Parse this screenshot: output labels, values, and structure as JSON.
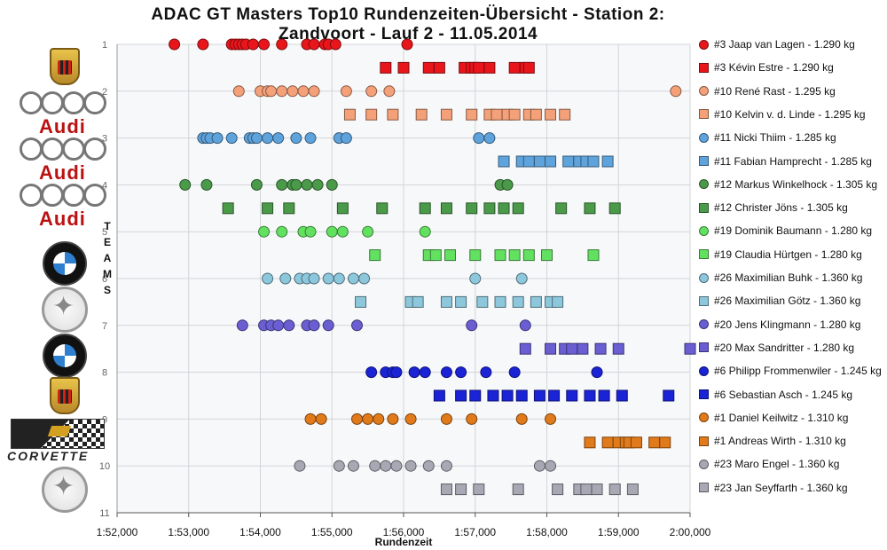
{
  "chart_data": {
    "type": "scatter",
    "title": "ADAC GT Masters Top10 Rundenzeiten-Übersicht - Station 2:\nZandvoort - Lauf 2 - 11.05.2014",
    "xlabel": "Rundenzeit",
    "ylabel": "",
    "xlim": [
      112,
      120
    ],
    "ylim": [
      1,
      11
    ],
    "x_ticks": [
      {
        "value": 112,
        "label": "1:52,000"
      },
      {
        "value": 113,
        "label": "1:53,000"
      },
      {
        "value": 114,
        "label": "1:54,000"
      },
      {
        "value": 115,
        "label": "1:55,000"
      },
      {
        "value": 116,
        "label": "1:56,000"
      },
      {
        "value": 117,
        "label": "1:57,000"
      },
      {
        "value": 118,
        "label": "1:58,000"
      },
      {
        "value": 119,
        "label": "1:59,000"
      },
      {
        "value": 120,
        "label": "2:00,000"
      }
    ],
    "y_ticks": [
      "1",
      "2",
      "3",
      "4",
      "5",
      "6",
      "7",
      "8",
      "9",
      "10",
      "11"
    ],
    "grid": true,
    "legend_position": "right",
    "side_text": "TEAMS",
    "series": [
      {
        "name": "#3 Jaap van Lagen - 1.290 kg",
        "color": "#e8151b",
        "marker": "circle",
        "row": 1,
        "x": [
          112.8,
          113.2,
          113.6,
          113.65,
          113.7,
          113.75,
          113.8,
          113.9,
          114.05,
          114.3,
          114.65,
          114.75,
          114.9,
          114.95,
          115.05,
          116.05
        ]
      },
      {
        "name": "#3 Kévin Estre - 1.290 kg",
        "color": "#e8151b",
        "marker": "square",
        "row": 1.5,
        "x": [
          115.75,
          116.0,
          116.35,
          116.5,
          116.85,
          116.95,
          117.0,
          117.05,
          117.2,
          117.55,
          117.7,
          117.75
        ]
      },
      {
        "name": "#10 René Rast - 1.295 kg",
        "color": "#f4a078",
        "marker": "circle",
        "row": 2,
        "x": [
          113.7,
          114.0,
          114.1,
          114.15,
          114.3,
          114.45,
          114.6,
          114.75,
          115.2,
          115.55,
          115.8,
          119.8
        ]
      },
      {
        "name": "#10 Kelvin v. d. Linde - 1.295 kg",
        "color": "#f4a078",
        "marker": "square",
        "row": 2.5,
        "x": [
          115.25,
          115.55,
          115.85,
          116.25,
          116.6,
          116.95,
          117.2,
          117.3,
          117.45,
          117.55,
          117.75,
          117.85,
          118.05,
          118.25
        ]
      },
      {
        "name": "#11 Nicki Thiim - 1.285 kg",
        "color": "#5fa3dc",
        "marker": "circle",
        "row": 3,
        "x": [
          113.2,
          113.25,
          113.3,
          113.4,
          113.6,
          113.85,
          113.9,
          113.95,
          114.1,
          114.25,
          114.5,
          114.7,
          115.1,
          115.2,
          117.05,
          117.2
        ]
      },
      {
        "name": "#11 Fabian Hamprecht - 1.285 kg",
        "color": "#5fa3dc",
        "marker": "square",
        "row": 3.5,
        "x": [
          117.4,
          117.65,
          117.75,
          117.9,
          118.05,
          118.3,
          118.45,
          118.55,
          118.65,
          118.85
        ]
      },
      {
        "name": "#12 Markus Winkelhock - 1.305 kg",
        "color": "#4a9a4a",
        "marker": "circle",
        "row": 4,
        "x": [
          112.95,
          113.25,
          113.95,
          114.3,
          114.45,
          114.5,
          114.65,
          114.8,
          115.0,
          117.35,
          117.45
        ]
      },
      {
        "name": "#12 Christer Jöns - 1.305 kg",
        "color": "#4a9a4a",
        "marker": "square",
        "row": 4.5,
        "x": [
          113.55,
          114.1,
          114.4,
          115.15,
          115.7,
          116.3,
          116.6,
          116.95,
          117.2,
          117.4,
          117.6,
          118.2,
          118.6,
          118.95
        ]
      },
      {
        "name": "#19 Dominik Baumann - 1.280 kg",
        "color": "#62e060",
        "marker": "circle",
        "row": 5,
        "x": [
          114.05,
          114.3,
          114.6,
          114.7,
          115.0,
          115.15,
          115.5,
          116.3
        ]
      },
      {
        "name": "#19 Claudia Hürtgen - 1.280 kg",
        "color": "#62e060",
        "marker": "square",
        "row": 5.5,
        "x": [
          115.6,
          116.35,
          116.45,
          116.65,
          117.0,
          117.35,
          117.55,
          117.75,
          118.0,
          118.65
        ]
      },
      {
        "name": "#26 Maximilian Buhk - 1.360 kg",
        "color": "#8cc7dc",
        "marker": "circle",
        "row": 6,
        "x": [
          114.1,
          114.35,
          114.55,
          114.65,
          114.75,
          114.95,
          115.1,
          115.3,
          115.45,
          117.0,
          117.65
        ]
      },
      {
        "name": "#26 Maximilian Götz - 1.360 kg",
        "color": "#8cc7dc",
        "marker": "square",
        "row": 6.5,
        "x": [
          115.4,
          116.1,
          116.2,
          116.6,
          116.8,
          117.1,
          117.35,
          117.6,
          117.85,
          118.05,
          118.15
        ]
      },
      {
        "name": "#20 Jens Klingmann - 1.280 kg",
        "color": "#6a5ed2",
        "marker": "circle",
        "row": 7,
        "x": [
          113.75,
          114.05,
          114.15,
          114.25,
          114.4,
          114.65,
          114.75,
          114.95,
          115.35,
          116.95,
          117.7
        ]
      },
      {
        "name": "#20 Max Sandritter - 1.280 kg",
        "color": "#6a5ed2",
        "marker": "square",
        "row": 7.5,
        "x": [
          117.7,
          118.05,
          118.25,
          118.35,
          118.5,
          118.75,
          119.0,
          120.0
        ]
      },
      {
        "name": "#6 Philipp Frommenwiler - 1.245 kg",
        "color": "#1a23d6",
        "marker": "circle",
        "row": 8,
        "x": [
          115.55,
          115.75,
          115.85,
          115.9,
          116.15,
          116.3,
          116.6,
          116.8,
          117.15,
          117.55,
          118.7
        ]
      },
      {
        "name": "#6 Sebastian Asch - 1.245 kg",
        "color": "#1a23d6",
        "marker": "square",
        "row": 8.5,
        "x": [
          116.5,
          116.8,
          117.0,
          117.25,
          117.45,
          117.65,
          117.9,
          118.1,
          118.35,
          118.6,
          118.8,
          119.05,
          119.7
        ]
      },
      {
        "name": "#1 Daniel Keilwitz - 1.310 kg",
        "color": "#e07a1a",
        "marker": "circle",
        "row": 9,
        "x": [
          114.7,
          114.85,
          115.35,
          115.5,
          115.65,
          115.85,
          116.1,
          116.6,
          116.95,
          117.65,
          118.05
        ]
      },
      {
        "name": "#1 Andreas Wirth - 1.310 kg",
        "color": "#e07a1a",
        "marker": "square",
        "row": 9.5,
        "x": [
          118.6,
          118.85,
          119.0,
          119.1,
          119.15,
          119.25,
          119.5,
          119.65
        ]
      },
      {
        "name": "#23 Maro Engel - 1.360 kg",
        "color": "#a8a8b4",
        "marker": "circle",
        "row": 10,
        "x": [
          114.55,
          115.1,
          115.3,
          115.6,
          115.75,
          115.9,
          116.1,
          116.35,
          116.6,
          117.9,
          118.05
        ]
      },
      {
        "name": "#23 Jan Seyffarth - 1.360 kg",
        "color": "#a8a8b4",
        "marker": "square",
        "row": 10.5,
        "x": [
          116.6,
          116.8,
          117.05,
          117.6,
          118.15,
          118.45,
          118.55,
          118.7,
          118.95,
          119.2
        ]
      }
    ]
  },
  "logos": [
    {
      "name": "porsche-logo",
      "brand": "Porsche",
      "type": "porsche"
    },
    {
      "name": "audi-logo",
      "brand": "Audi",
      "type": "audi"
    },
    {
      "name": "audi-logo",
      "brand": "Audi",
      "type": "audi"
    },
    {
      "name": "audi-logo",
      "brand": "Audi",
      "type": "audi"
    },
    {
      "name": "bmw-logo",
      "brand": "BMW",
      "type": "bmw"
    },
    {
      "name": "mercedes-logo",
      "brand": "Mercedes-Benz",
      "type": "merc"
    },
    {
      "name": "bmw-logo",
      "brand": "BMW",
      "type": "bmw"
    },
    {
      "name": "porsche-logo",
      "brand": "Porsche",
      "type": "porsche"
    },
    {
      "name": "corvette-logo",
      "brand": "Corvette",
      "type": "corvette"
    },
    {
      "name": "mercedes-logo",
      "brand": "Mercedes-Benz",
      "type": "merc"
    }
  ],
  "audi_text": "Audi",
  "corvette_text": "CORVETTE"
}
